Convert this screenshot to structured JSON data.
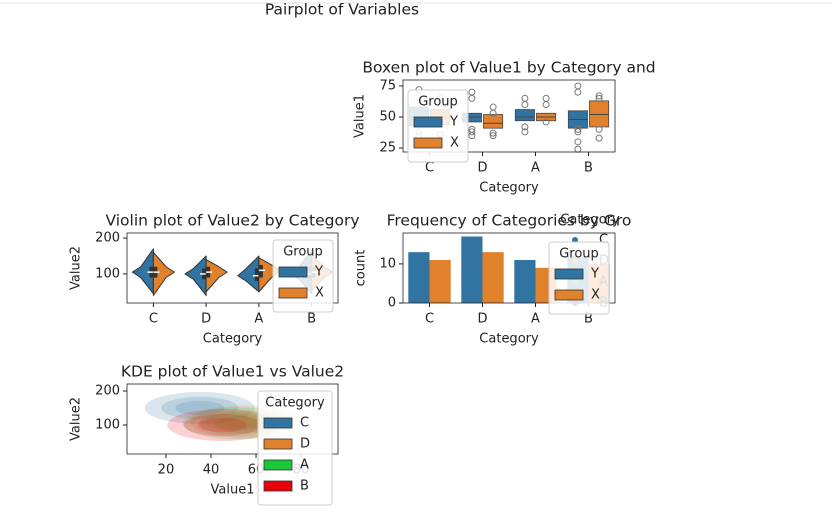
{
  "title": "Pairplot of Variables",
  "chart_data": [
    {
      "type": "boxen",
      "title": "Boxen plot of Value1 by Category and",
      "xlabel": "Category",
      "ylabel": "Value1",
      "categories": [
        "C",
        "D",
        "A",
        "B"
      ],
      "ylim": [
        21.8,
        79.8
      ],
      "yticks": [
        25,
        50,
        75
      ],
      "legend_title": "Group",
      "series": [
        {
          "name": "Y",
          "color": "#3274a1",
          "q1": [
            43,
            46,
            47,
            41
          ],
          "median": [
            50,
            50,
            50,
            48
          ],
          "q3": [
            58,
            53,
            56,
            55
          ],
          "outliers": [
            [
              35,
              38,
              72
            ],
            [
              35,
              38,
              40,
              65,
              70
            ],
            [
              38,
              42,
              60,
              65
            ],
            [
              24,
              30,
              38,
              40,
              70,
              75
            ]
          ]
        },
        {
          "name": "X",
          "color": "#e1812c",
          "q1": [
            44,
            41,
            47,
            42
          ],
          "median": [
            50,
            45,
            50,
            52
          ],
          "q3": [
            56,
            52,
            53,
            63
          ],
          "outliers": [
            [
              36,
              66
            ],
            [
              35,
              37,
              53,
              58
            ],
            [
              46,
              60,
              65
            ],
            [
              33,
              40,
              65,
              67
            ]
          ]
        }
      ]
    },
    {
      "type": "violin",
      "title": "Violin plot of Value2 by Category",
      "xlabel": "Category",
      "ylabel": "Value2",
      "categories": [
        "C",
        "D",
        "A",
        "B"
      ],
      "ylim": [
        19,
        214
      ],
      "yticks": [
        100,
        200
      ],
      "legend_title": "Group",
      "series": [
        {
          "name": "Y",
          "color": "#3274a1",
          "min": [
            45,
            40,
            50,
            45
          ],
          "q1": [
            90,
            85,
            80,
            85
          ],
          "median": [
            105,
            100,
            95,
            100
          ],
          "q3": [
            120,
            115,
            115,
            120
          ],
          "max": [
            170,
            150,
            150,
            165
          ]
        },
        {
          "name": "X",
          "color": "#e1812c",
          "min": [
            40,
            50,
            50,
            55
          ],
          "q1": [
            90,
            90,
            90,
            90
          ],
          "median": [
            105,
            105,
            110,
            105
          ],
          "q3": [
            120,
            120,
            125,
            120
          ],
          "max": [
            160,
            140,
            145,
            150
          ]
        }
      ]
    },
    {
      "type": "bar",
      "title": "Frequency of Categories by Gro",
      "xlabel": "Category",
      "ylabel": "count",
      "categories": [
        "C",
        "D",
        "A",
        "B"
      ],
      "ylim": [
        0,
        17.9
      ],
      "yticks": [
        0,
        10
      ],
      "legend_title": "Group",
      "series": [
        {
          "name": "Y",
          "color": "#3274a1",
          "values": [
            13,
            17,
            11,
            12
          ]
        },
        {
          "name": "X",
          "color": "#e1812c",
          "values": [
            11,
            13,
            9,
            10
          ]
        }
      ],
      "category_legend": {
        "title": "Category",
        "items": [
          {
            "name": "C",
            "color": "#3274a1"
          },
          {
            "name": "D",
            "color": "#e1812c"
          },
          {
            "name": "A",
            "color": "#1ac938"
          },
          {
            "name": "B",
            "color": "#e8000b"
          }
        ]
      }
    },
    {
      "type": "kde",
      "title": "KDE plot of Value1 vs Value2",
      "xlabel": "Value1",
      "ylabel": "Value2",
      "xlim": [
        2.7,
        96.4
      ],
      "xticks": [
        20,
        40,
        60,
        80
      ],
      "ylim": [
        14.7,
        220.6
      ],
      "yticks": [
        100,
        200
      ],
      "legend_title": "Category",
      "series": [
        {
          "name": "C",
          "color": "#3274a1",
          "x": [
            35
          ],
          "y": [
            150
          ]
        },
        {
          "name": "D",
          "color": "#e1812c",
          "x": [
            55
          ],
          "y": [
            110
          ]
        },
        {
          "name": "A",
          "color": "#1ac938",
          "x": [
            52
          ],
          "y": [
            105
          ]
        },
        {
          "name": "B",
          "color": "#e8000b",
          "x": [
            45
          ],
          "y": [
            100
          ]
        }
      ]
    }
  ]
}
